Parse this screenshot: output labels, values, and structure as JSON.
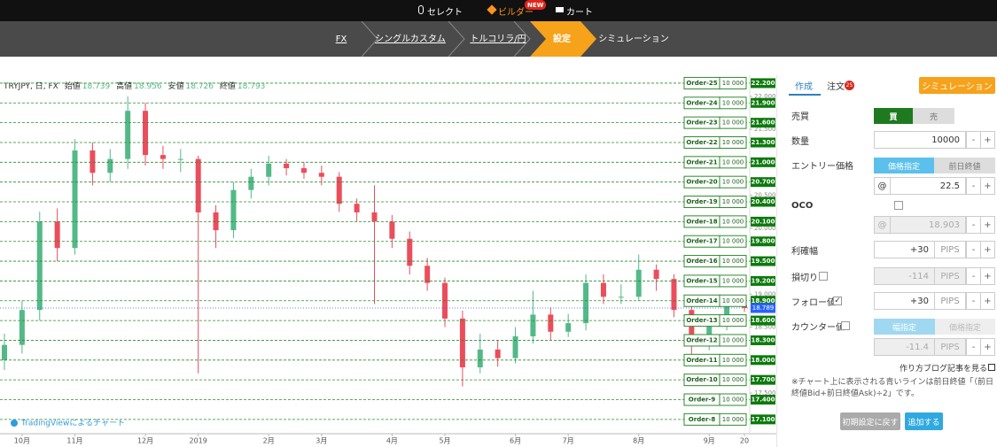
{
  "nav": {
    "items": [
      "セレクト",
      "ビルダー",
      "カート"
    ],
    "badge": "NEW"
  },
  "breadcrumb": [
    "FX",
    "シングルカスタム",
    "トルコリラ/円",
    "設定",
    "シミュレーション"
  ],
  "chart_data": {
    "type": "candlestick",
    "title": "TRYJPY, 日, FX",
    "ohlc_labels": [
      "始値",
      "高値",
      "安値",
      "終値"
    ],
    "ohlc_values": [
      18.739,
      18.956,
      18.726,
      18.793
    ],
    "watermark": "TradingViewによるチャート",
    "up_color": "#53b987",
    "down_color": "#eb4d5c",
    "categories": [
      null,
      "10月",
      null,
      null,
      "11月",
      null,
      null,
      null,
      "12月",
      null,
      null,
      "2019",
      null,
      null,
      null,
      "2月",
      null,
      null,
      "3月",
      null,
      null,
      null,
      "4月",
      null,
      null,
      "5月",
      null,
      null,
      null,
      "6月",
      null,
      null,
      "7月",
      null,
      null,
      null,
      "8月",
      null,
      null,
      null,
      "9月",
      null,
      "20"
    ],
    "open": [
      18.0,
      18.23,
      18.76,
      20.1,
      19.7,
      21.18,
      20.84,
      21.05,
      21.78,
      21.11,
      21.05,
      21.05,
      20.24,
      19.97,
      20.58,
      20.78,
      20.98,
      20.91,
      20.84,
      20.78,
      20.37,
      20.24,
      20.1,
      19.84,
      19.43,
      19.17,
      18.63,
      17.89,
      18.16,
      18.03,
      18.36,
      18.69,
      18.43,
      18.56,
      19.17,
      18.96,
      18.96,
      19.37,
      19.23,
      18.76,
      18.23,
      18.56,
      18.83
    ],
    "high": [
      18.4,
      18.9,
      20.25,
      20.3,
      21.35,
      21.3,
      21.2,
      22.0,
      21.9,
      21.25,
      21.2,
      21.1,
      20.35,
      20.7,
      20.9,
      21.1,
      21.05,
      21.0,
      20.95,
      20.85,
      20.45,
      20.65,
      20.2,
      19.95,
      19.55,
      19.25,
      18.75,
      18.4,
      18.3,
      18.5,
      19.05,
      18.8,
      18.7,
      19.3,
      19.3,
      19.15,
      19.6,
      19.45,
      19.3,
      18.85,
      18.65,
      18.95,
      18.96
    ],
    "low": [
      17.85,
      18.1,
      18.6,
      19.5,
      19.6,
      20.65,
      20.7,
      20.9,
      20.95,
      20.9,
      20.85,
      17.8,
      19.7,
      19.85,
      20.45,
      20.65,
      20.8,
      20.75,
      20.65,
      20.25,
      20.1,
      18.85,
      19.7,
      19.3,
      19.05,
      18.5,
      17.6,
      17.8,
      17.9,
      17.95,
      18.25,
      18.3,
      18.35,
      18.45,
      18.85,
      18.85,
      18.9,
      19.05,
      18.65,
      18.05,
      18.15,
      18.45,
      18.73
    ],
    "close": [
      18.23,
      18.76,
      20.1,
      19.7,
      21.18,
      20.84,
      21.05,
      21.78,
      21.11,
      21.05,
      21.05,
      20.24,
      19.97,
      20.58,
      20.78,
      20.98,
      20.91,
      20.84,
      20.78,
      20.37,
      20.24,
      20.1,
      19.84,
      19.43,
      19.17,
      18.63,
      17.89,
      18.16,
      18.03,
      18.36,
      18.69,
      18.43,
      18.56,
      19.17,
      18.96,
      18.96,
      19.37,
      19.23,
      18.76,
      18.23,
      18.56,
      18.83,
      18.79
    ],
    "ylim": [
      16.91,
      22.32
    ],
    "yticks": [
      {
        "value": 17.5,
        "label": "17.500"
      },
      {
        "value": 18,
        "label": "18.000"
      },
      {
        "value": 18.5,
        "label": "18.500"
      },
      {
        "value": 19,
        "label": "19.000"
      },
      {
        "value": 19.5,
        "label": "19.500"
      },
      {
        "value": 20,
        "label": "20.000"
      },
      {
        "value": 20.5,
        "label": "20.500"
      },
      {
        "value": 21,
        "label": "21.000"
      },
      {
        "value": 21.5,
        "label": "21.500"
      },
      {
        "value": 22,
        "label": "22.000"
      }
    ],
    "last_price": {
      "value": 18.789,
      "label": "18.789"
    },
    "orders": [
      {
        "name": "Order-25",
        "quantity": "10 000",
        "price": {
          "value": 22.2,
          "label": "22.200"
        }
      },
      {
        "name": "Order-24",
        "quantity": "10 000",
        "price": {
          "value": 21.9,
          "label": "21.900"
        }
      },
      {
        "name": "Order-23",
        "quantity": "10 000",
        "price": {
          "value": 21.6,
          "label": "21.600"
        }
      },
      {
        "name": "Order-22",
        "quantity": "10 000",
        "price": {
          "value": 21.3,
          "label": "21.300"
        }
      },
      {
        "name": "Order-21",
        "quantity": "10 000",
        "price": {
          "value": 21.0,
          "label": "21.000"
        }
      },
      {
        "name": "Order-20",
        "quantity": "10 000",
        "price": {
          "value": 20.7,
          "label": "20.700"
        }
      },
      {
        "name": "Order-19",
        "quantity": "10 000",
        "price": {
          "value": 20.4,
          "label": "20.400"
        }
      },
      {
        "name": "Order-18",
        "quantity": "10 000",
        "price": {
          "value": 20.1,
          "label": "20.100"
        }
      },
      {
        "name": "Order-17",
        "quantity": "10 000",
        "price": {
          "value": 19.8,
          "label": "19.800"
        }
      },
      {
        "name": "Order-16",
        "quantity": "10 000",
        "price": {
          "value": 19.5,
          "label": "19.500"
        }
      },
      {
        "name": "Order-15",
        "quantity": "10 000",
        "price": {
          "value": 19.2,
          "label": "19.200"
        }
      },
      {
        "name": "Order-14",
        "quantity": "10 000",
        "price": {
          "value": 18.9,
          "label": "18.900"
        }
      },
      {
        "name": "Order-13",
        "quantity": "10 000",
        "price": {
          "value": 18.6,
          "label": "18.600"
        }
      },
      {
        "name": "Order-12",
        "quantity": "10 000",
        "price": {
          "value": 18.3,
          "label": "18.300"
        }
      },
      {
        "name": "Order-11",
        "quantity": "10 000",
        "price": {
          "value": 18.0,
          "label": "18.000"
        }
      },
      {
        "name": "Order-10",
        "quantity": "10 000",
        "price": {
          "value": 17.7,
          "label": "17.700"
        }
      },
      {
        "name": "Order-9",
        "quantity": "10 000",
        "price": {
          "value": 17.4,
          "label": "17.400"
        }
      },
      {
        "name": "Order-8",
        "quantity": "10 000",
        "price": {
          "value": 17.1,
          "label": "17.100"
        }
      }
    ]
  },
  "panel": {
    "tabs": [
      "作成",
      "注文"
    ],
    "badge": "25",
    "sim_button": "シミュレーション",
    "minus": "-",
    "plus": "+",
    "at": "@",
    "side": {
      "label": "売買",
      "buy": "買",
      "sell": "売"
    },
    "quantity": {
      "label": "数量",
      "value": "10000"
    },
    "entry": {
      "label": "エントリー価格",
      "options": [
        "価格指定",
        "前日終値"
      ],
      "value": "22.5"
    },
    "oco": {
      "label": "OCO",
      "value": "18.903"
    },
    "take_profit": {
      "label": "利確幅",
      "value": "+30",
      "unit": "PIPS"
    },
    "stop_loss": {
      "label": "損切り",
      "value": "-114",
      "unit": "PIPS"
    },
    "follow": {
      "label": "フォロー値",
      "value": "+30",
      "unit": "PIPS"
    },
    "counter": {
      "label": "カウンター値",
      "options": [
        "幅指定",
        "価格指定"
      ],
      "value": "-11.4",
      "unit": "PIPS"
    },
    "blog_link": "作り方ブログ記事を見る",
    "note": "※チャート上に表示される青いラインは前日終値「（前日終値Bid+前日終値Ask)÷2」です。",
    "reset_button": "初期設定に戻す",
    "add_button": "追加する"
  }
}
